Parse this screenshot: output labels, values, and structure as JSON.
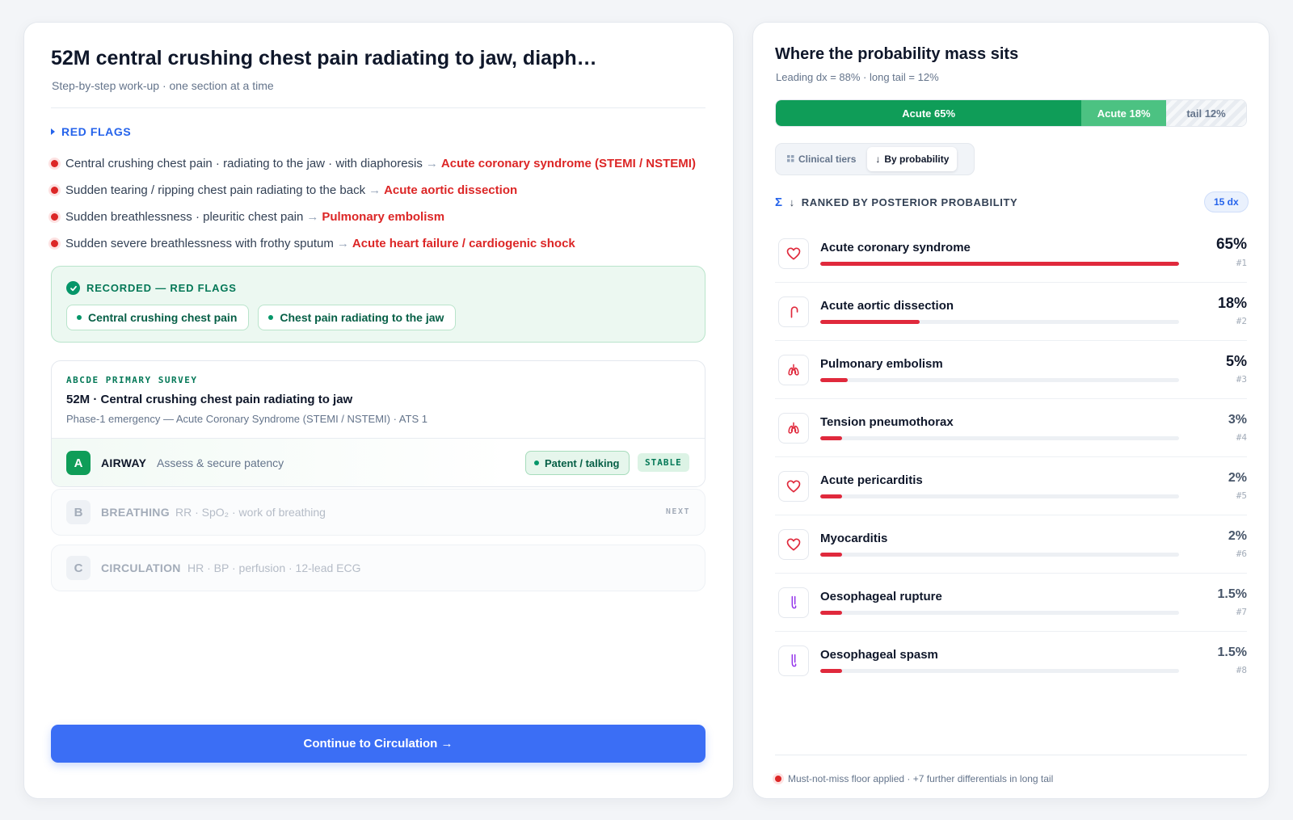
{
  "left": {
    "title": "52M central crushing chest pain radiating to jaw, diaph…",
    "subtitle": "Step-by-step work-up · one section at a time",
    "red_flags": {
      "heading": "RED FLAGS",
      "items": [
        {
          "text": "Central crushing chest pain · radiating to the jaw · with diaphoresis",
          "arrow": "→",
          "dx": "Acute coronary syndrome (STEMI / NSTEMI)"
        },
        {
          "text": "Sudden tearing / ripping chest pain radiating to the back",
          "arrow": "→",
          "dx": "Acute aortic dissection"
        },
        {
          "text": "Sudden breathlessness · pleuritic chest pain",
          "arrow": "→",
          "dx": "Pulmonary embolism"
        },
        {
          "text": "Sudden severe breathlessness with frothy sputum",
          "arrow": "→",
          "dx": "Acute heart failure / cardiogenic shock"
        }
      ]
    },
    "recorded": {
      "heading": "RECORDED — RED FLAGS",
      "chips": [
        "Central crushing chest pain",
        "Chest pain radiating to the jaw"
      ]
    },
    "survey": {
      "eyebrow": "ABCDE PRIMARY SURVEY",
      "title": "52M · Central crushing chest pain radiating to jaw",
      "subtitle": "Phase-1 emergency — Acute Coronary Syndrome (STEMI / NSTEMI) · ATS 1",
      "airway": {
        "letter": "A",
        "name": "AIRWAY",
        "desc": "Assess & secure patency",
        "finding": "Patent / talking",
        "status": "STABLE"
      }
    },
    "breathing": {
      "letter": "B",
      "name": "BREATHING",
      "desc": "RR · SpO₂ · work of breathing",
      "tag": "NEXT"
    },
    "circulation": {
      "letter": "C",
      "name": "CIRCULATION",
      "desc": "HR · BP · perfusion · 12-lead ECG"
    },
    "continue_label": "Continue to Circulation →"
  },
  "right": {
    "title": "Where the probability mass sits",
    "subtitle": "Leading dx = 88% · long tail = 12%",
    "mass_segments": [
      {
        "label": "Acute 65%",
        "value": 65,
        "color": "#0f9d58"
      },
      {
        "label": "Acute 18%",
        "value": 18,
        "color": "#4cc282"
      },
      {
        "label": "tail 12%",
        "value": 12
      }
    ],
    "toggles": {
      "clinical": "Clinical tiers",
      "probability": "By probability"
    },
    "ranked_heading": "RANKED BY POSTERIOR PROBABILITY",
    "dx_count": "15 dx",
    "differentials": [
      {
        "name": "Acute coronary syndrome",
        "pct_label": "65%",
        "value": 65,
        "rank": "#1",
        "icon": "heart-icon"
      },
      {
        "name": "Acute aortic dissection",
        "pct_label": "18%",
        "value": 18,
        "rank": "#2",
        "icon": "aorta-icon"
      },
      {
        "name": "Pulmonary embolism",
        "pct_label": "5%",
        "value": 5,
        "rank": "#3",
        "icon": "lungs-icon"
      },
      {
        "name": "Tension pneumothorax",
        "pct_label": "3%",
        "value": 3,
        "rank": "#4",
        "icon": "lungs-icon"
      },
      {
        "name": "Acute pericarditis",
        "pct_label": "2%",
        "value": 2,
        "rank": "#5",
        "icon": "heart-icon"
      },
      {
        "name": "Myocarditis",
        "pct_label": "2%",
        "value": 2,
        "rank": "#6",
        "icon": "heart-icon"
      },
      {
        "name": "Oesophageal rupture",
        "pct_label": "1.5%",
        "value": 1.5,
        "rank": "#7",
        "icon": "oesophagus-icon"
      },
      {
        "name": "Oesophageal spasm",
        "pct_label": "1.5%",
        "value": 1.5,
        "rank": "#8",
        "icon": "oesophagus-icon"
      }
    ],
    "footer_note": "Must-not-miss floor applied · +7 further differentials in long tail"
  },
  "colors": {
    "accent_blue": "#3b6ef5",
    "danger_red": "#dc2626",
    "bar_red": "#e0293c",
    "success_green": "#0f9d58",
    "light_green": "#4cc282"
  }
}
